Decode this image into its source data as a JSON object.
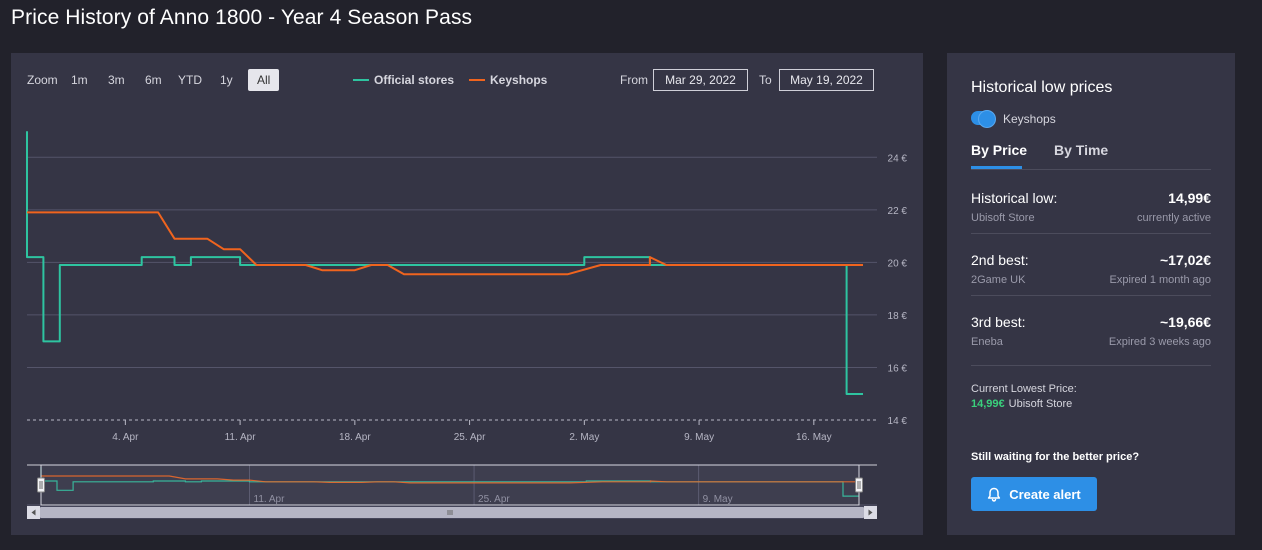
{
  "page_title": "Price History of Anno 1800 - Year 4 Season Pass",
  "toolbar": {
    "zoom_label": "Zoom",
    "zoom_buttons": [
      "1m",
      "3m",
      "6m",
      "YTD",
      "1y",
      "All"
    ],
    "active_zoom": "All",
    "legend": [
      {
        "label": "Official stores",
        "color": "#2ec4a0"
      },
      {
        "label": "Keyshops",
        "color": "#f0641e"
      }
    ],
    "from_label": "From",
    "from_value": "Mar 29, 2022",
    "to_label": "To",
    "to_value": "May 19, 2022"
  },
  "chart_data": {
    "type": "line",
    "x_type": "date",
    "x_range": [
      "2022-03-29",
      "2022-05-19"
    ],
    "x_ticks": [
      {
        "date": "2022-04-04",
        "label": "4. Apr"
      },
      {
        "date": "2022-04-11",
        "label": "11. Apr"
      },
      {
        "date": "2022-04-18",
        "label": "18. Apr"
      },
      {
        "date": "2022-04-25",
        "label": "25. Apr"
      },
      {
        "date": "2022-05-02",
        "label": "2. May"
      },
      {
        "date": "2022-05-09",
        "label": "9. May"
      },
      {
        "date": "2022-05-16",
        "label": "16. May"
      }
    ],
    "ylim": [
      14,
      25
    ],
    "y_ticks": [
      {
        "value": 14,
        "label": "14 €"
      },
      {
        "value": 16,
        "label": "16 €"
      },
      {
        "value": 18,
        "label": "18 €"
      },
      {
        "value": 20,
        "label": "20 €"
      },
      {
        "value": 22,
        "label": "22 €"
      },
      {
        "value": 24,
        "label": "24 €"
      }
    ],
    "grid": true,
    "series": [
      {
        "name": "Official stores",
        "color": "#2ec4a0",
        "step": true,
        "points": [
          [
            "2022-03-29",
            24.99
          ],
          [
            "2022-03-29",
            20.2
          ],
          [
            "2022-03-30",
            20.2
          ],
          [
            "2022-03-30",
            16.99
          ],
          [
            "2022-03-31",
            16.99
          ],
          [
            "2022-03-31",
            19.9
          ],
          [
            "2022-04-05",
            19.9
          ],
          [
            "2022-04-05",
            20.2
          ],
          [
            "2022-04-07",
            20.2
          ],
          [
            "2022-04-07",
            19.9
          ],
          [
            "2022-04-08",
            19.9
          ],
          [
            "2022-04-08",
            20.2
          ],
          [
            "2022-04-11",
            20.2
          ],
          [
            "2022-04-11",
            19.9
          ],
          [
            "2022-05-02",
            19.9
          ],
          [
            "2022-05-02",
            20.2
          ],
          [
            "2022-05-06",
            20.2
          ],
          [
            "2022-05-06",
            19.9
          ],
          [
            "2022-05-18",
            19.9
          ],
          [
            "2022-05-18",
            14.99
          ],
          [
            "2022-05-19",
            14.99
          ]
        ]
      },
      {
        "name": "Keyshops",
        "color": "#f0641e",
        "step": false,
        "points": [
          [
            "2022-03-29",
            21.9
          ],
          [
            "2022-04-06",
            21.9
          ],
          [
            "2022-04-07",
            20.9
          ],
          [
            "2022-04-09",
            20.9
          ],
          [
            "2022-04-10",
            20.5
          ],
          [
            "2022-04-11",
            20.5
          ],
          [
            "2022-04-12",
            19.9
          ],
          [
            "2022-04-15",
            19.9
          ],
          [
            "2022-04-16",
            19.7
          ],
          [
            "2022-04-18",
            19.7
          ],
          [
            "2022-04-19",
            19.9
          ],
          [
            "2022-04-20",
            19.9
          ],
          [
            "2022-04-21",
            19.55
          ],
          [
            "2022-05-01",
            19.55
          ],
          [
            "2022-05-03",
            19.9
          ],
          [
            "2022-05-06",
            19.9
          ],
          [
            "2022-05-06",
            20.2
          ],
          [
            "2022-05-07",
            19.9
          ],
          [
            "2022-05-19",
            19.9
          ]
        ]
      }
    ],
    "navigator": {
      "ticks": [
        "11. Apr",
        "25. Apr",
        "9. May"
      ]
    }
  },
  "side": {
    "title": "Historical low prices",
    "toggle_label": "Keyshops",
    "toggle_on": true,
    "tabs": [
      "By Price",
      "By Time"
    ],
    "active_tab": "By Price",
    "rows": [
      {
        "name": "Historical low:",
        "price": "14,99€",
        "store": "Ubisoft Store",
        "status": "currently active"
      },
      {
        "name": "2nd best:",
        "price": "~17,02€",
        "store": "2Game UK",
        "status": "Expired 1 month ago"
      },
      {
        "name": "3rd best:",
        "price": "~19,66€",
        "store": "Eneba",
        "status": "Expired 3 weeks ago"
      }
    ],
    "current_label": "Current Lowest Price:",
    "current_price": "14,99€",
    "current_store": "Ubisoft Store",
    "waiting_text": "Still waiting for the better price?",
    "alert_button": "Create alert",
    "accent": "#2d8fe6",
    "good_price_color": "#3ad07c"
  }
}
